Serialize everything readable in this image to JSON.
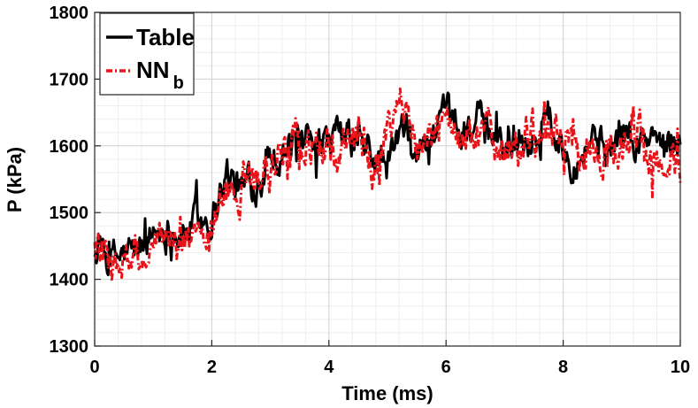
{
  "chart_data": {
    "type": "line",
    "xlabel": "Time (ms)",
    "ylabel": "P (kPa)",
    "xlim": [
      0,
      10
    ],
    "ylim": [
      1300,
      1800
    ],
    "x_ticks": [
      "0",
      "2",
      "4",
      "6",
      "8",
      "10"
    ],
    "y_ticks": [
      "1300",
      "1400",
      "1500",
      "1600",
      "1700",
      "1800"
    ],
    "grid": true,
    "legend_position": "top-left",
    "legend": {
      "table": {
        "label": "Table",
        "color": "#000000",
        "style": "solid"
      },
      "nn": {
        "label": "NN",
        "subscript": "b",
        "color": "#e8141a",
        "style": "dash-dot"
      }
    },
    "series": [
      {
        "name": "Table",
        "color": "#000000",
        "x": [
          0,
          0.25,
          0.5,
          0.75,
          1,
          1.25,
          1.5,
          1.75,
          2,
          2.25,
          2.5,
          2.75,
          3,
          3.25,
          3.5,
          3.75,
          4,
          4.25,
          4.5,
          4.75,
          5,
          5.25,
          5.5,
          5.75,
          6,
          6.25,
          6.5,
          6.75,
          7,
          7.25,
          7.5,
          7.75,
          8,
          8.25,
          8.5,
          8.75,
          9,
          9.25,
          9.5,
          9.75,
          10
        ],
        "values": [
          1450,
          1425,
          1435,
          1440,
          1470,
          1480,
          1470,
          1490,
          1500,
          1560,
          1530,
          1550,
          1590,
          1600,
          1600,
          1580,
          1600,
          1610,
          1600,
          1580,
          1570,
          1620,
          1590,
          1610,
          1630,
          1620,
          1640,
          1610,
          1600,
          1620,
          1610,
          1640,
          1600,
          1590,
          1620,
          1590,
          1620,
          1600,
          1610,
          1600,
          1620
        ]
      },
      {
        "name": "NN b",
        "color": "#e8141a",
        "x": [
          0,
          0.25,
          0.5,
          0.75,
          1,
          1.25,
          1.5,
          1.75,
          2,
          2.25,
          2.5,
          2.75,
          3,
          3.25,
          3.5,
          3.75,
          4,
          4.25,
          4.5,
          4.75,
          5,
          5.25,
          5.5,
          5.75,
          6,
          6.25,
          6.5,
          6.75,
          7,
          7.25,
          7.5,
          7.75,
          8,
          8.25,
          8.5,
          8.75,
          9,
          9.25,
          9.5,
          9.75,
          10
        ],
        "values": [
          1455,
          1420,
          1420,
          1430,
          1425,
          1460,
          1450,
          1460,
          1470,
          1530,
          1540,
          1570,
          1560,
          1620,
          1590,
          1600,
          1590,
          1600,
          1620,
          1580,
          1600,
          1660,
          1600,
          1620,
          1650,
          1600,
          1640,
          1620,
          1590,
          1600,
          1610,
          1600,
          1620,
          1600,
          1580,
          1590,
          1600,
          1610,
          1580,
          1590,
          1570
        ]
      }
    ]
  }
}
